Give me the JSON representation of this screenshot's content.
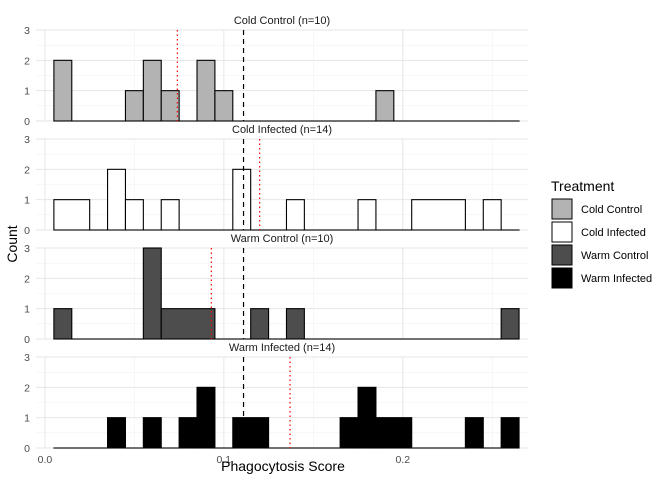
{
  "chart_data": {
    "type": "bar",
    "subtype": "faceted histogram",
    "xlabel": "Phagocytosis Score",
    "ylabel": "Count",
    "xlim": [
      -0.005,
      0.27
    ],
    "ylim": [
      0,
      3
    ],
    "x_ticks": [
      0.0,
      0.1,
      0.2
    ],
    "x_tick_labels": [
      "0.0",
      "0.1",
      "0.2"
    ],
    "y_ticks": [
      0,
      1,
      2,
      3
    ],
    "y_tick_labels": [
      "0",
      "1",
      "2",
      "3"
    ],
    "bin_width": 0.01,
    "bin_start": 0.005,
    "bin_count": 26,
    "grid": true,
    "overall_mean": 0.111,
    "overall_mean_style": "black dashed",
    "group_mean_style": "red dotted",
    "legend": {
      "title": "Treatment",
      "position": "right",
      "items": [
        {
          "label": "Cold Control",
          "color": "#b3b3b3"
        },
        {
          "label": "Cold Infected",
          "color": "#ffffff"
        },
        {
          "label": "Warm Control",
          "color": "#4d4d4d"
        },
        {
          "label": "Warm Infected",
          "color": "#000000"
        }
      ]
    },
    "facets": [
      {
        "title": "Cold Control (n=10)",
        "fill": "#b3b3b3",
        "group_mean": 0.074,
        "counts": [
          2,
          0,
          0,
          0,
          1,
          2,
          1,
          0,
          2,
          1,
          0,
          0,
          0,
          0,
          0,
          0,
          0,
          0,
          1,
          0,
          0,
          0,
          0,
          0,
          0,
          0
        ]
      },
      {
        "title": "Cold Infected (n=14)",
        "fill": "#ffffff",
        "group_mean": 0.12,
        "counts": [
          1,
          1,
          0,
          2,
          1,
          0,
          1,
          0,
          0,
          0,
          2,
          0,
          0,
          1,
          0,
          0,
          0,
          1,
          0,
          0,
          1,
          1,
          1,
          0,
          1,
          0
        ]
      },
      {
        "title": "Warm Control (n=10)",
        "fill": "#4d4d4d",
        "group_mean": 0.093,
        "counts": [
          1,
          0,
          0,
          0,
          0,
          3,
          1,
          1,
          1,
          0,
          0,
          1,
          0,
          1,
          0,
          0,
          0,
          0,
          0,
          0,
          0,
          0,
          0,
          0,
          0,
          1
        ]
      },
      {
        "title": "Warm Infected (n=14)",
        "fill": "#000000",
        "group_mean": 0.137,
        "counts": [
          0,
          0,
          0,
          1,
          0,
          1,
          0,
          1,
          2,
          0,
          1,
          1,
          0,
          0,
          0,
          0,
          1,
          2,
          1,
          1,
          0,
          0,
          0,
          1,
          0,
          1
        ]
      }
    ]
  }
}
